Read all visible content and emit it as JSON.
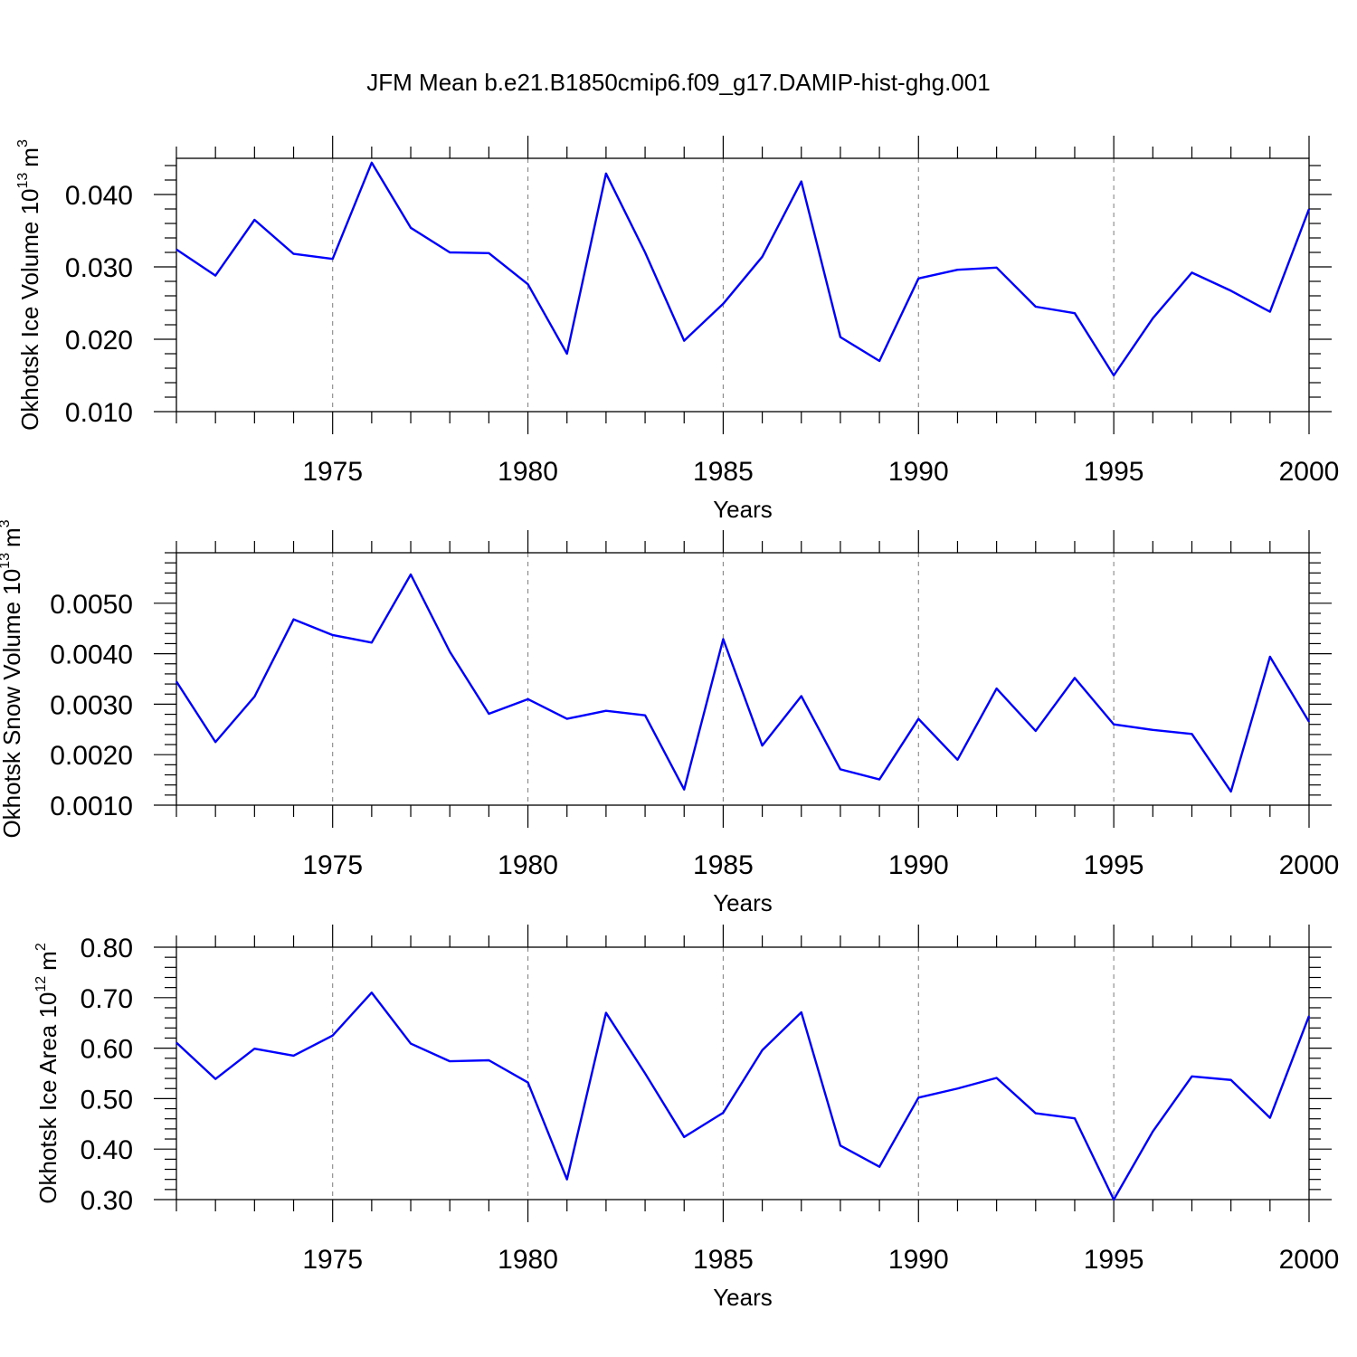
{
  "title": "JFM Mean b.e21.B1850cmip6.f09_g17.DAMIP-hist-ghg.001",
  "colors": {
    "line": "#0000ff",
    "grid": "#888888",
    "axis": "#000000"
  },
  "chart_data": [
    {
      "type": "line",
      "xlabel": "Years",
      "ylabel": "Okhotsk Ice Volume 10",
      "ylabel_exp": "13",
      "ylabel_unit": "m",
      "ylabel_unit_exp": "3",
      "xlim": [
        1971,
        2000
      ],
      "ylim": [
        0.01,
        0.045
      ],
      "yticks": [
        0.01,
        0.02,
        0.03,
        0.04
      ],
      "ytick_labels": [
        "0.010",
        "0.020",
        "0.030",
        "0.040"
      ],
      "yminor_step": 0.002,
      "xticks": [
        1975,
        1980,
        1985,
        1990,
        1995,
        2000
      ],
      "xtick_labels": [
        "1975",
        "1980",
        "1985",
        "1990",
        "1995",
        "2000"
      ],
      "grid": "vertical dashed at major x ticks",
      "x": [
        1971,
        1972,
        1973,
        1974,
        1975,
        1976,
        1977,
        1978,
        1979,
        1980,
        1981,
        1982,
        1983,
        1984,
        1985,
        1986,
        1987,
        1988,
        1989,
        1990,
        1991,
        1992,
        1993,
        1994,
        1995,
        1996,
        1997,
        1998,
        1999,
        2000
      ],
      "values": [
        0.0324,
        0.0288,
        0.0365,
        0.0318,
        0.0311,
        0.0444,
        0.0354,
        0.032,
        0.0319,
        0.0276,
        0.018,
        0.0429,
        0.032,
        0.0198,
        0.0249,
        0.0314,
        0.0418,
        0.0203,
        0.017,
        0.0284,
        0.0296,
        0.0299,
        0.0245,
        0.0236,
        0.015,
        0.0229,
        0.0292,
        0.0267,
        0.0238,
        0.038
      ]
    },
    {
      "type": "line",
      "xlabel": "Years",
      "ylabel": "Okhotsk Snow Volume 10",
      "ylabel_exp": "13",
      "ylabel_unit": "m",
      "ylabel_unit_exp": "3",
      "xlim": [
        1971,
        2000
      ],
      "ylim": [
        0.001,
        0.006
      ],
      "yticks": [
        0.001,
        0.002,
        0.003,
        0.004,
        0.005
      ],
      "ytick_labels": [
        "0.0010",
        "0.0020",
        "0.0030",
        "0.0040",
        "0.0050"
      ],
      "yminor_step": 0.0002,
      "xticks": [
        1975,
        1980,
        1985,
        1990,
        1995,
        2000
      ],
      "xtick_labels": [
        "1975",
        "1980",
        "1985",
        "1990",
        "1995",
        "2000"
      ],
      "grid": "vertical dashed at major x ticks",
      "x": [
        1971,
        1972,
        1973,
        1974,
        1975,
        1976,
        1977,
        1978,
        1979,
        1980,
        1981,
        1982,
        1983,
        1984,
        1985,
        1986,
        1987,
        1988,
        1989,
        1990,
        1991,
        1992,
        1993,
        1994,
        1995,
        1996,
        1997,
        1998,
        1999,
        2000
      ],
      "values": [
        0.00345,
        0.00225,
        0.00315,
        0.00468,
        0.00437,
        0.00422,
        0.00557,
        0.00404,
        0.00281,
        0.0031,
        0.00271,
        0.00287,
        0.00278,
        0.00131,
        0.00429,
        0.00218,
        0.00316,
        0.00171,
        0.00151,
        0.00271,
        0.0019,
        0.00331,
        0.00247,
        0.00352,
        0.0026,
        0.00249,
        0.00241,
        0.00127,
        0.00394,
        0.00265
      ]
    },
    {
      "type": "line",
      "xlabel": "Years",
      "ylabel": "Okhotsk Ice Area 10",
      "ylabel_exp": "12",
      "ylabel_unit": "m",
      "ylabel_unit_exp": "2",
      "xlim": [
        1971,
        2000
      ],
      "ylim": [
        0.3,
        0.8
      ],
      "yticks": [
        0.3,
        0.4,
        0.5,
        0.6,
        0.7,
        0.8
      ],
      "ytick_labels": [
        "0.30",
        "0.40",
        "0.50",
        "0.60",
        "0.70",
        "0.80"
      ],
      "yminor_step": 0.02,
      "xticks": [
        1975,
        1980,
        1985,
        1990,
        1995,
        2000
      ],
      "xtick_labels": [
        "1975",
        "1980",
        "1985",
        "1990",
        "1995",
        "2000"
      ],
      "grid": "vertical dashed at major x ticks",
      "x": [
        1971,
        1972,
        1973,
        1974,
        1975,
        1976,
        1977,
        1978,
        1979,
        1980,
        1981,
        1982,
        1983,
        1984,
        1985,
        1986,
        1987,
        1988,
        1989,
        1990,
        1991,
        1992,
        1993,
        1994,
        1995,
        1996,
        1997,
        1998,
        1999,
        2000
      ],
      "values": [
        0.611,
        0.539,
        0.599,
        0.585,
        0.625,
        0.71,
        0.609,
        0.574,
        0.576,
        0.532,
        0.34,
        0.67,
        0.55,
        0.424,
        0.472,
        0.596,
        0.671,
        0.407,
        0.365,
        0.502,
        0.52,
        0.541,
        0.471,
        0.461,
        0.3,
        0.435,
        0.544,
        0.537,
        0.462,
        0.664
      ]
    }
  ]
}
